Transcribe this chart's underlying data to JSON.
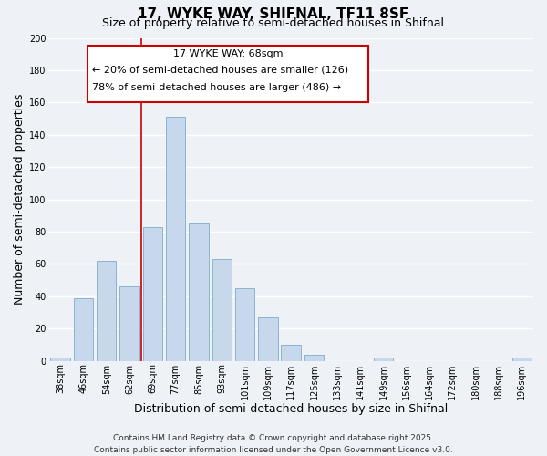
{
  "title": "17, WYKE WAY, SHIFNAL, TF11 8SF",
  "subtitle": "Size of property relative to semi-detached houses in Shifnal",
  "xlabel": "Distribution of semi-detached houses by size in Shifnal",
  "ylabel": "Number of semi-detached properties",
  "categories": [
    "38sqm",
    "46sqm",
    "54sqm",
    "62sqm",
    "69sqm",
    "77sqm",
    "85sqm",
    "93sqm",
    "101sqm",
    "109sqm",
    "117sqm",
    "125sqm",
    "133sqm",
    "141sqm",
    "149sqm",
    "156sqm",
    "164sqm",
    "172sqm",
    "180sqm",
    "188sqm",
    "196sqm"
  ],
  "values": [
    2,
    39,
    62,
    46,
    83,
    151,
    85,
    63,
    45,
    27,
    10,
    4,
    0,
    0,
    2,
    0,
    0,
    0,
    0,
    0,
    2
  ],
  "bar_color": "#c8d8ec",
  "bar_edge_color": "#8ab4d4",
  "ylim": [
    0,
    200
  ],
  "yticks": [
    0,
    20,
    40,
    60,
    80,
    100,
    120,
    140,
    160,
    180,
    200
  ],
  "property_line_idx": 4,
  "property_line_label": "17 WYKE WAY: 68sqm",
  "annotation_smaller": "← 20% of semi-detached houses are smaller (126)",
  "annotation_larger": "78% of semi-detached houses are larger (486) →",
  "box_color": "#cc0000",
  "footnote1": "Contains HM Land Registry data © Crown copyright and database right 2025.",
  "footnote2": "Contains public sector information licensed under the Open Government Licence v3.0.",
  "bg_color": "#eef2f7",
  "grid_color": "#ffffff",
  "title_fontsize": 11,
  "subtitle_fontsize": 9,
  "axis_label_fontsize": 9,
  "tick_fontsize": 7,
  "annotation_fontsize": 8,
  "footnote_fontsize": 6.5
}
